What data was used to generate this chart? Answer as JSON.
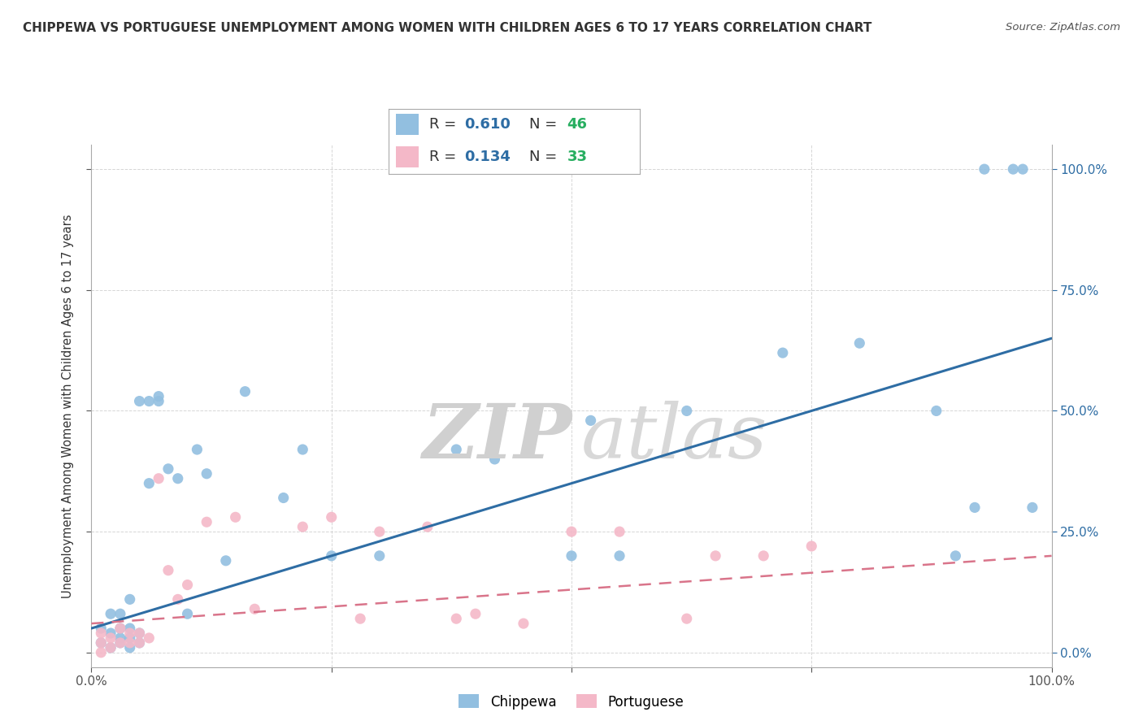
{
  "title": "CHIPPEWA VS PORTUGUESE UNEMPLOYMENT AMONG WOMEN WITH CHILDREN AGES 6 TO 17 YEARS CORRELATION CHART",
  "source": "Source: ZipAtlas.com",
  "ylabel": "Unemployment Among Women with Children Ages 6 to 17 years",
  "watermark_zip": "ZIP",
  "watermark_atlas": "atlas",
  "chippewa_R": "0.610",
  "chippewa_N": "46",
  "portuguese_R": "0.134",
  "portuguese_N": "33",
  "xlim": [
    0.0,
    1.0
  ],
  "ylim": [
    -0.03,
    1.05
  ],
  "xticks": [
    0.0,
    0.25,
    0.5,
    0.75,
    1.0
  ],
  "yticks": [
    0.0,
    0.25,
    0.5,
    0.75,
    1.0
  ],
  "xtick_labels": [
    "0.0%",
    "",
    "",
    "",
    "100.0%"
  ],
  "ytick_labels": [
    "",
    "",
    "",
    "",
    ""
  ],
  "right_ytick_labels": [
    "0.0%",
    "25.0%",
    "50.0%",
    "75.0%",
    "100.0%"
  ],
  "chippewa_color": "#92bfe0",
  "portuguese_color": "#f4b8c8",
  "chippewa_line_color": "#2e6da4",
  "portuguese_line_color": "#d9748a",
  "legend_R_color": "#2e6da4",
  "legend_N_color": "#27ae60",
  "chippewa_x": [
    0.01,
    0.01,
    0.02,
    0.02,
    0.02,
    0.03,
    0.03,
    0.03,
    0.03,
    0.04,
    0.04,
    0.04,
    0.04,
    0.05,
    0.05,
    0.05,
    0.06,
    0.06,
    0.07,
    0.07,
    0.08,
    0.09,
    0.1,
    0.11,
    0.12,
    0.14,
    0.16,
    0.2,
    0.22,
    0.25,
    0.3,
    0.38,
    0.42,
    0.5,
    0.52,
    0.55,
    0.62,
    0.72,
    0.8,
    0.88,
    0.9,
    0.92,
    0.93,
    0.96,
    0.97,
    0.98
  ],
  "chippewa_y": [
    0.02,
    0.05,
    0.01,
    0.04,
    0.08,
    0.02,
    0.03,
    0.05,
    0.08,
    0.01,
    0.03,
    0.05,
    0.11,
    0.02,
    0.04,
    0.52,
    0.35,
    0.52,
    0.52,
    0.53,
    0.38,
    0.36,
    0.08,
    0.42,
    0.37,
    0.19,
    0.54,
    0.32,
    0.42,
    0.2,
    0.2,
    0.42,
    0.4,
    0.2,
    0.48,
    0.2,
    0.5,
    0.62,
    0.64,
    0.5,
    0.2,
    0.3,
    1.0,
    1.0,
    1.0,
    0.3
  ],
  "portuguese_x": [
    0.01,
    0.01,
    0.01,
    0.02,
    0.02,
    0.03,
    0.03,
    0.04,
    0.04,
    0.05,
    0.05,
    0.06,
    0.07,
    0.08,
    0.09,
    0.1,
    0.12,
    0.15,
    0.17,
    0.22,
    0.25,
    0.28,
    0.3,
    0.35,
    0.38,
    0.4,
    0.45,
    0.5,
    0.55,
    0.62,
    0.65,
    0.7,
    0.75
  ],
  "portuguese_y": [
    0.0,
    0.02,
    0.04,
    0.01,
    0.03,
    0.02,
    0.05,
    0.02,
    0.04,
    0.02,
    0.04,
    0.03,
    0.36,
    0.17,
    0.11,
    0.14,
    0.27,
    0.28,
    0.09,
    0.26,
    0.28,
    0.07,
    0.25,
    0.26,
    0.07,
    0.08,
    0.06,
    0.25,
    0.25,
    0.07,
    0.2,
    0.2,
    0.22
  ],
  "chip_line_x0": 0.0,
  "chip_line_y0": 0.05,
  "chip_line_x1": 1.0,
  "chip_line_y1": 0.65,
  "port_line_x0": 0.0,
  "port_line_y0": 0.06,
  "port_line_x1": 1.0,
  "port_line_y1": 0.2,
  "background_color": "#ffffff",
  "grid_color": "#cccccc"
}
